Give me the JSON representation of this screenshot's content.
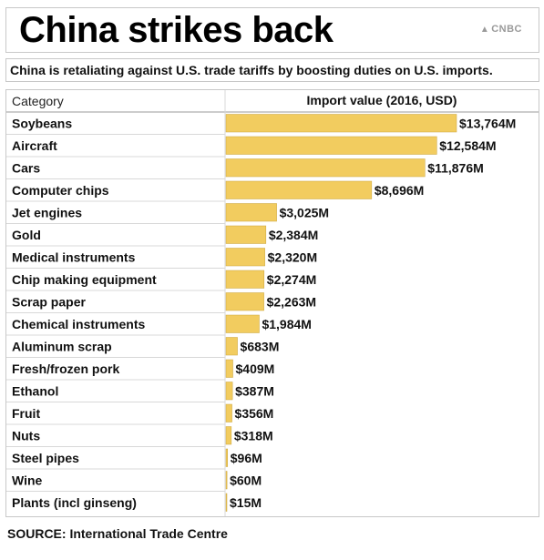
{
  "title": "China strikes back",
  "logo": "CNBC",
  "subtitle": "China is retaliating against U.S. trade tariffs by boosting duties on U.S. imports.",
  "source": "SOURCE: International Trade Centre",
  "colors": {
    "bar": "#f2cc5f",
    "bar_stroke": "#c9a43a",
    "row_line": "#d8d8d8",
    "header_bg": "#ffffff"
  },
  "chart_data": {
    "type": "bar",
    "orientation": "horizontal",
    "category_header": "Category",
    "value_header": "Import value (2016, USD)",
    "categories": [
      "Soybeans",
      "Aircraft",
      "Cars",
      "Computer chips",
      "Jet engines",
      "Gold",
      "Medical instruments",
      "Chip making equipment",
      "Scrap paper",
      "Chemical instruments",
      "Aluminum scrap",
      "Fresh/frozen pork",
      "Ethanol",
      "Fruit",
      "Nuts",
      "Steel pipes",
      "Wine",
      "Plants (incl ginseng)"
    ],
    "values": [
      13764,
      12584,
      11876,
      8696,
      3025,
      2384,
      2320,
      2274,
      2263,
      1984,
      683,
      409,
      387,
      356,
      318,
      96,
      60,
      15
    ],
    "labels": [
      "$13,764M",
      "$12,584M",
      "$11,876M",
      "$8,696M",
      "$3,025M",
      "$2,384M",
      "$2,320M",
      "$2,274M",
      "$2,263M",
      "$1,984M",
      "$683M",
      "$409M",
      "$387M",
      "$356M",
      "$318M",
      "$96M",
      "$60M",
      "$15M"
    ],
    "unit": "USD millions",
    "grid": false
  }
}
